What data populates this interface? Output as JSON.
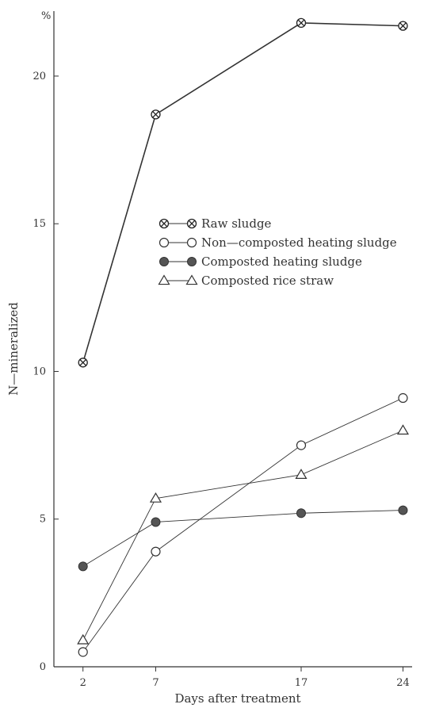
{
  "chart_data": {
    "type": "line",
    "xlabel": "Days after treatment",
    "ylabel": "N—mineralized",
    "y_unit": "%",
    "xlim": [
      0,
      25.5
    ],
    "ylim": [
      0,
      22.2
    ],
    "x_ticks": [
      2,
      7,
      17,
      24
    ],
    "y_ticks": [
      0,
      5,
      10,
      15,
      20
    ],
    "legend_position": "center-right",
    "grid": false,
    "series": [
      {
        "name": "Raw sludge",
        "marker": "crossed-circle",
        "x": [
          2,
          7,
          17,
          24
        ],
        "values": [
          10.3,
          18.7,
          21.8,
          21.7
        ]
      },
      {
        "name": "Non—composted heating sludge",
        "marker": "open-circle",
        "x": [
          2,
          7,
          17,
          24
        ],
        "values": [
          0.5,
          3.9,
          7.5,
          9.1
        ]
      },
      {
        "name": "Composted heating sludge",
        "marker": "filled-circle",
        "x": [
          2,
          7,
          17,
          24
        ],
        "values": [
          3.4,
          4.9,
          5.2,
          5.3
        ]
      },
      {
        "name": "Composted rice straw",
        "marker": "open-triangle",
        "x": [
          2,
          7,
          17,
          24
        ],
        "values": [
          0.9,
          5.7,
          6.5,
          8.0
        ]
      }
    ]
  }
}
